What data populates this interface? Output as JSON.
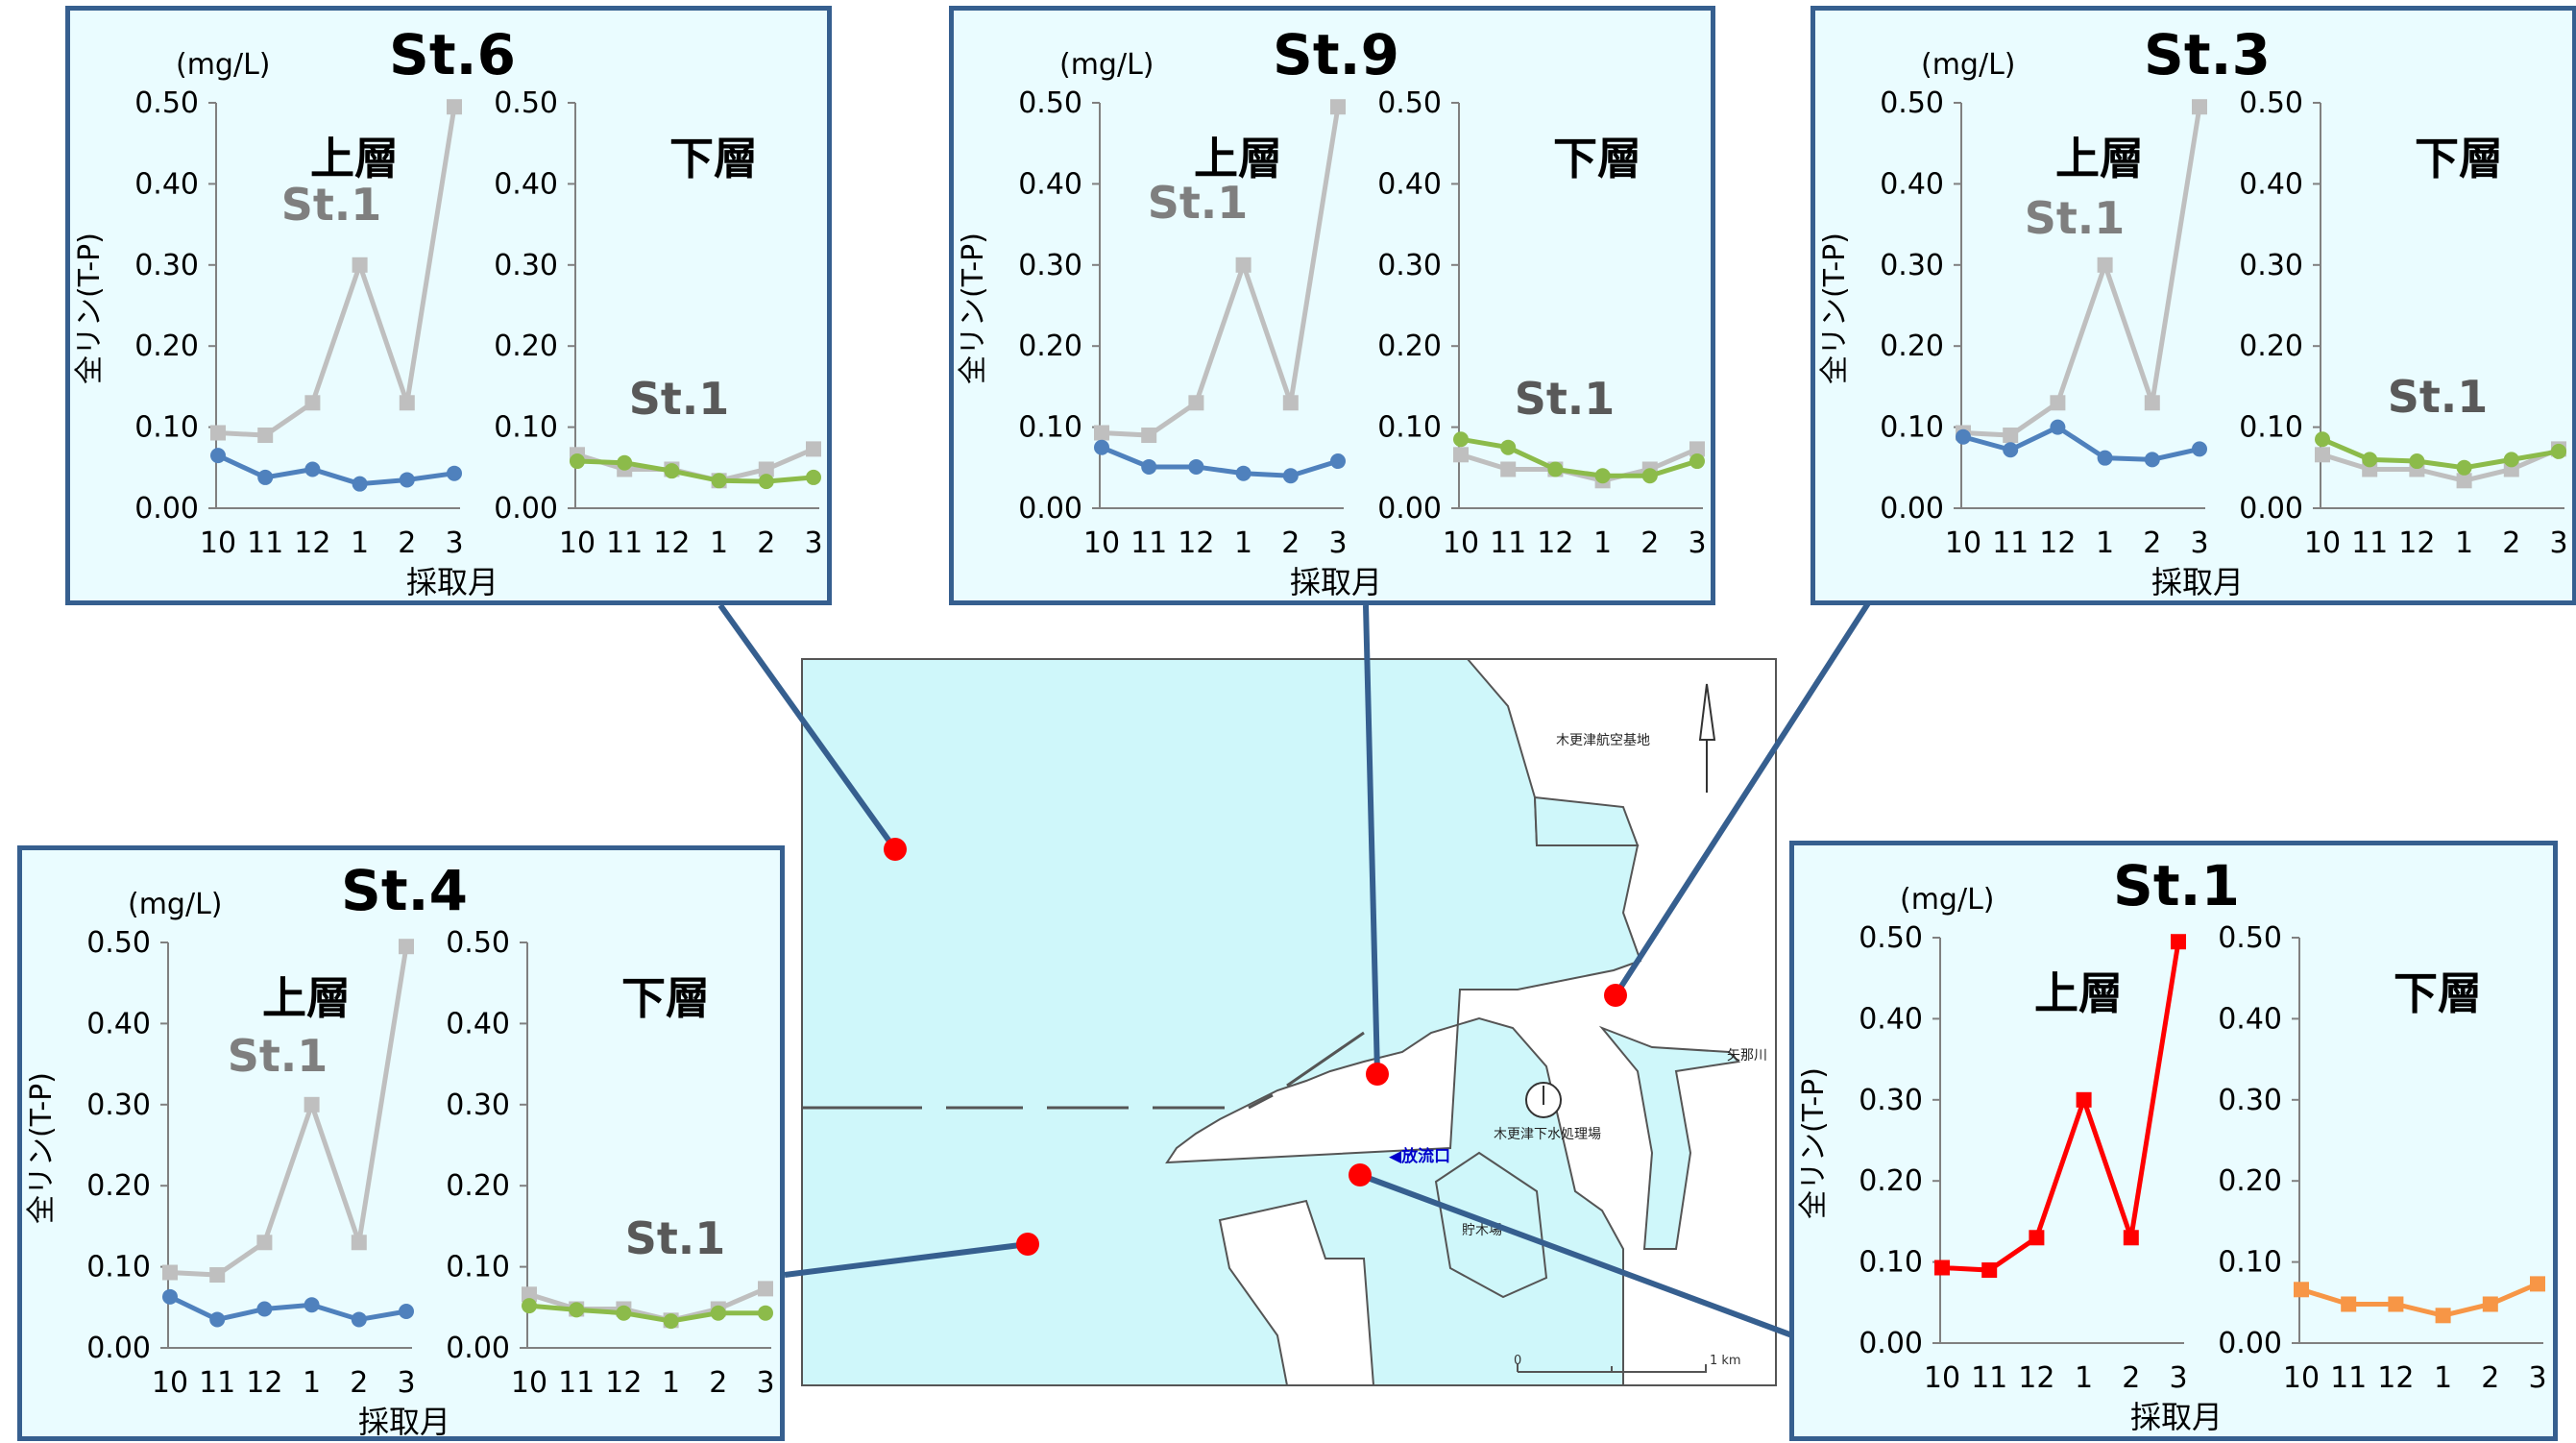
{
  "map": {
    "labels": {
      "airbase": "木更津航空基地",
      "river": "矢那川",
      "plant": "木更津下水処理場",
      "pond": "貯木場",
      "outfall": "◀放流口",
      "scale_zero": "0",
      "scale_end": "1 km"
    },
    "colors": {
      "water": "#cff7fa",
      "land": "#ffffff",
      "station": "#ff0000",
      "connector": "#365f8f"
    }
  },
  "panel_common": {
    "unit": "(mg/L)",
    "ylabel": "全リン(T-P)",
    "xlabel": "採取月",
    "upper_label": "上層",
    "lower_label": "下層",
    "ref_label": "St.1",
    "yticks": [
      "0.00",
      "0.10",
      "0.20",
      "0.30",
      "0.40",
      "0.50"
    ],
    "colors": {
      "upper": "#4f81bd",
      "lower": "#8cbb4a",
      "reference": "#bfbfbf",
      "st1_upper": "#ff0000",
      "st1_lower": "#f79646",
      "border": "#365f8f",
      "background": "#eafcff"
    }
  },
  "chart_data": [
    {
      "type": "line",
      "title": "St.6",
      "categories": [
        "10",
        "11",
        "12",
        "1",
        "2",
        "3"
      ],
      "ylim": [
        0,
        0.5
      ],
      "ylabel": "全リン(T-P)",
      "xlabel": "採取月",
      "upper": {
        "station": [
          0.065,
          0.038,
          0.048,
          0.03,
          0.035,
          0.043
        ],
        "reference_st1": [
          0.093,
          0.09,
          0.13,
          0.3,
          0.13,
          0.495
        ]
      },
      "lower": {
        "station": [
          0.058,
          0.056,
          0.046,
          0.034,
          0.033,
          0.038
        ],
        "reference_st1": [
          0.066,
          0.048,
          0.048,
          0.034,
          0.048,
          0.073
        ]
      }
    },
    {
      "type": "line",
      "title": "St.9",
      "categories": [
        "10",
        "11",
        "12",
        "1",
        "2",
        "3"
      ],
      "ylim": [
        0,
        0.5
      ],
      "ylabel": "全リン(T-P)",
      "xlabel": "採取月",
      "upper": {
        "station": [
          0.075,
          0.051,
          0.051,
          0.043,
          0.04,
          0.058
        ],
        "reference_st1": [
          0.093,
          0.09,
          0.13,
          0.3,
          0.13,
          0.495
        ]
      },
      "lower": {
        "station": [
          0.085,
          0.075,
          0.048,
          0.04,
          0.04,
          0.058
        ],
        "reference_st1": [
          0.066,
          0.048,
          0.048,
          0.034,
          0.048,
          0.073
        ]
      }
    },
    {
      "type": "line",
      "title": "St.3",
      "categories": [
        "10",
        "11",
        "12",
        "1",
        "2",
        "3"
      ],
      "ylim": [
        0,
        0.5
      ],
      "ylabel": "全リン(T-P)",
      "xlabel": "採取月",
      "upper": {
        "station": [
          0.088,
          0.072,
          0.1,
          0.062,
          0.06,
          0.073
        ],
        "reference_st1": [
          0.093,
          0.09,
          0.13,
          0.3,
          0.13,
          0.495
        ]
      },
      "lower": {
        "station": [
          0.085,
          0.06,
          0.058,
          0.05,
          0.06,
          0.07
        ],
        "reference_st1": [
          0.066,
          0.048,
          0.048,
          0.034,
          0.048,
          0.073
        ]
      }
    },
    {
      "type": "line",
      "title": "St.4",
      "categories": [
        "10",
        "11",
        "12",
        "1",
        "2",
        "3"
      ],
      "ylim": [
        0,
        0.5
      ],
      "ylabel": "全リン(T-P)",
      "xlabel": "採取月",
      "upper": {
        "station": [
          0.063,
          0.035,
          0.048,
          0.053,
          0.035,
          0.045
        ],
        "reference_st1": [
          0.093,
          0.09,
          0.13,
          0.3,
          0.13,
          0.495
        ]
      },
      "lower": {
        "station": [
          0.052,
          0.047,
          0.043,
          0.033,
          0.043,
          0.043
        ],
        "reference_st1": [
          0.066,
          0.048,
          0.048,
          0.034,
          0.048,
          0.073
        ]
      }
    },
    {
      "type": "line",
      "title": "St.1",
      "categories": [
        "10",
        "11",
        "12",
        "1",
        "2",
        "3"
      ],
      "ylim": [
        0,
        0.5
      ],
      "ylabel": "全リン(T-P)",
      "xlabel": "採取月",
      "upper": {
        "station": [
          0.093,
          0.09,
          0.13,
          0.3,
          0.13,
          0.495
        ]
      },
      "lower": {
        "station": [
          0.066,
          0.048,
          0.048,
          0.034,
          0.048,
          0.073
        ]
      }
    }
  ]
}
